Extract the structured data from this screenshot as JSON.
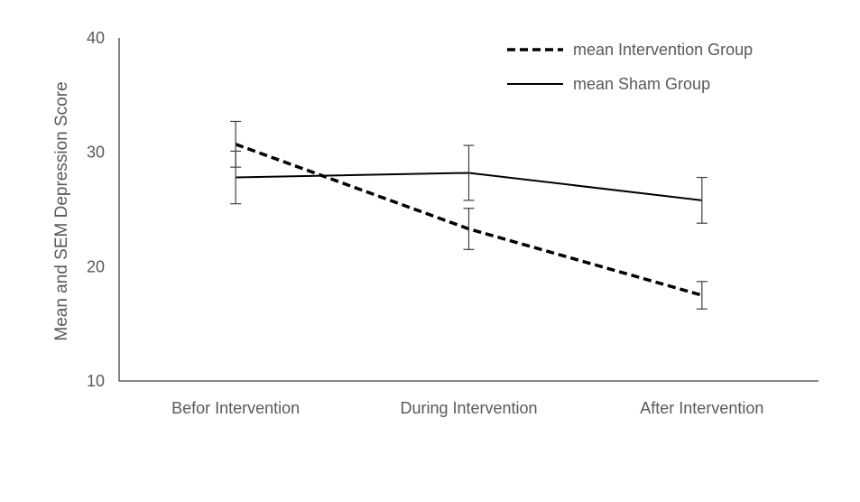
{
  "chart_data": {
    "type": "line",
    "categories": [
      "Befor Intervention",
      "During Intervention",
      "After Intervention"
    ],
    "series": [
      {
        "name": "mean Intervention Group",
        "values": [
          30.7,
          23.3,
          17.5
        ],
        "errors": [
          2.0,
          1.8,
          1.2
        ],
        "line_style": "dashed",
        "color": "#000000"
      },
      {
        "name": "mean Sham Group",
        "values": [
          27.8,
          28.2,
          25.8
        ],
        "errors": [
          2.3,
          2.4,
          2.0
        ],
        "line_style": "solid",
        "color": "#000000"
      }
    ],
    "title": "",
    "xlabel": "",
    "ylabel": "Mean and SEM Depression Score",
    "ylim": [
      10,
      40
    ],
    "yticks": [
      10,
      20,
      30,
      40
    ],
    "grid": false,
    "legend_position": "top-right"
  }
}
